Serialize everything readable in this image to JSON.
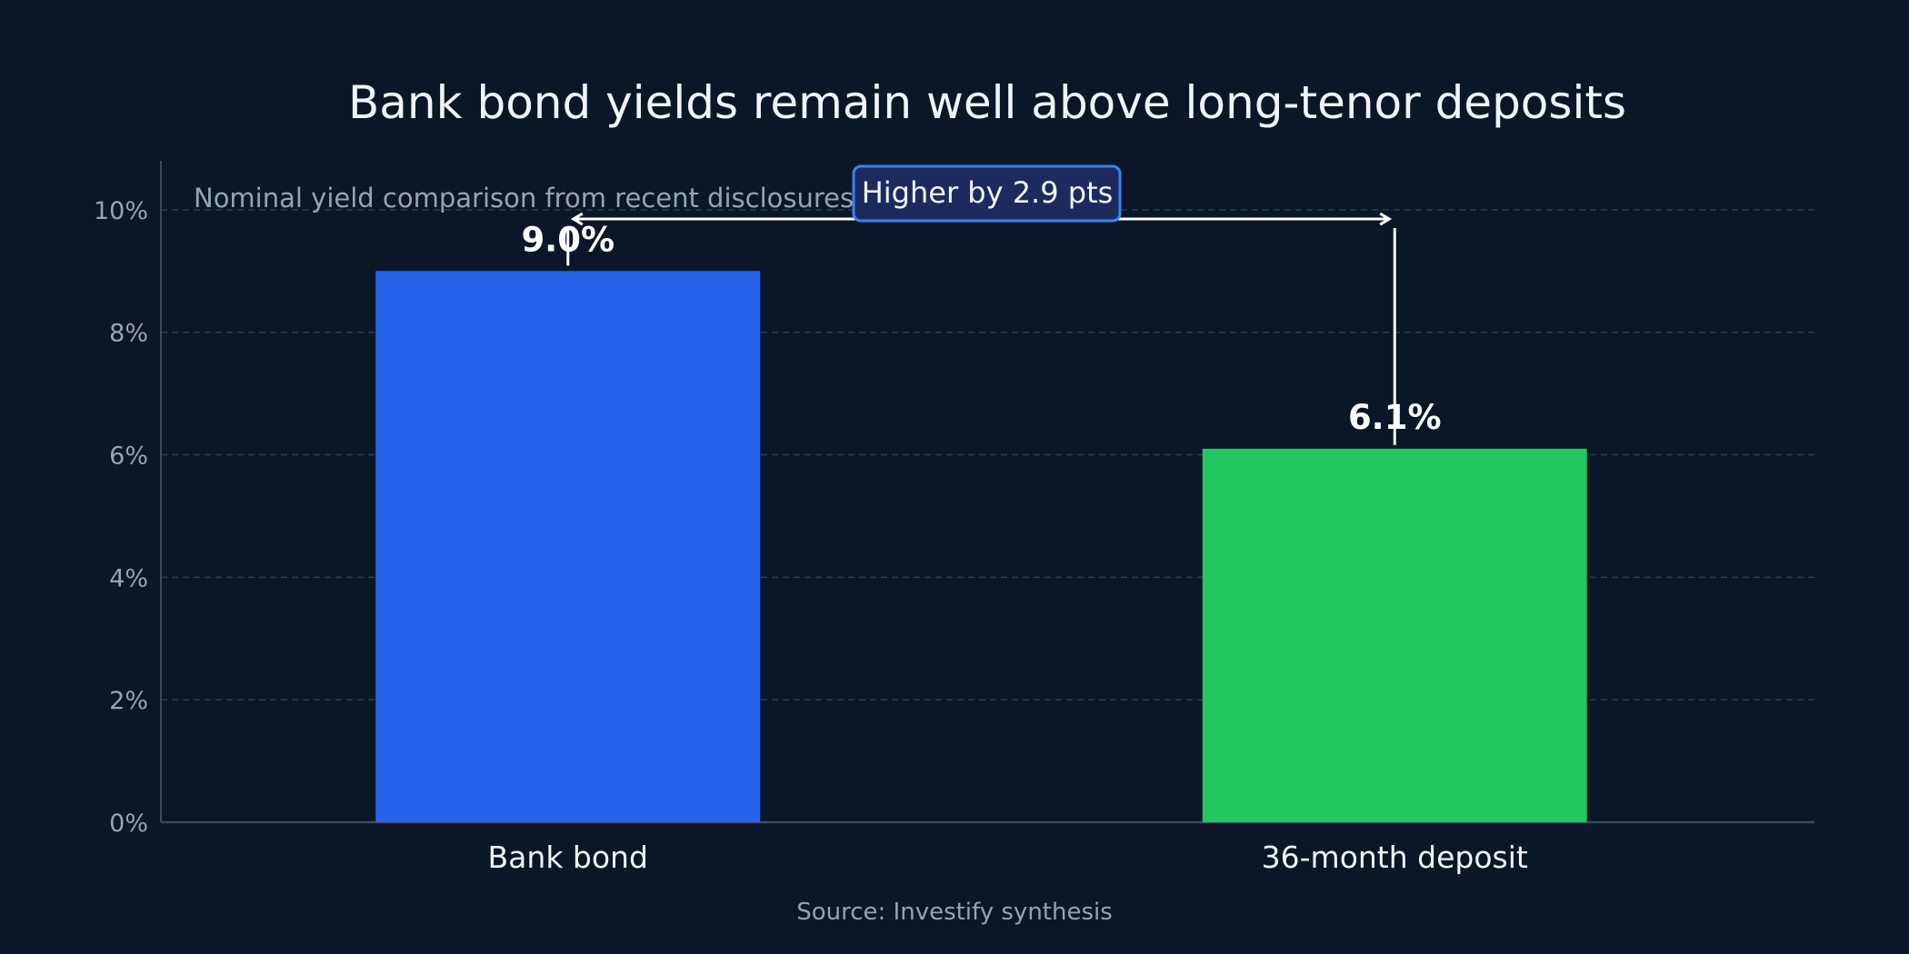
{
  "chart_data": {
    "type": "bar",
    "title": "Bank bond yields remain well above long-tenor deposits",
    "subtitle": "Nominal yield comparison from recent disclosures",
    "categories": [
      "Bank bond",
      "36-month deposit"
    ],
    "values": [
      9.0,
      6.1
    ],
    "value_labels": [
      "9.0%",
      "6.1%"
    ],
    "colors": [
      "#2563eb",
      "#22c55e"
    ],
    "ylim": [
      0,
      10.8
    ],
    "yticks": [
      0,
      2,
      4,
      6,
      8,
      10
    ],
    "ytick_labels": [
      "0%",
      "2%",
      "4%",
      "6%",
      "8%",
      "10%"
    ],
    "grid": true,
    "annotation": {
      "text": "Higher by 2.9 pts",
      "arrow_y_value": 9.85
    },
    "source": "Source: Investify synthesis"
  },
  "colors": {
    "background": "#0b1728",
    "text": "#f1f5f9",
    "muted": "#94a3b8",
    "grid": "#2e3d52",
    "axis": "#3b4a5e",
    "callout_fill": "#1e2a5e",
    "callout_border": "#3b82f6"
  }
}
